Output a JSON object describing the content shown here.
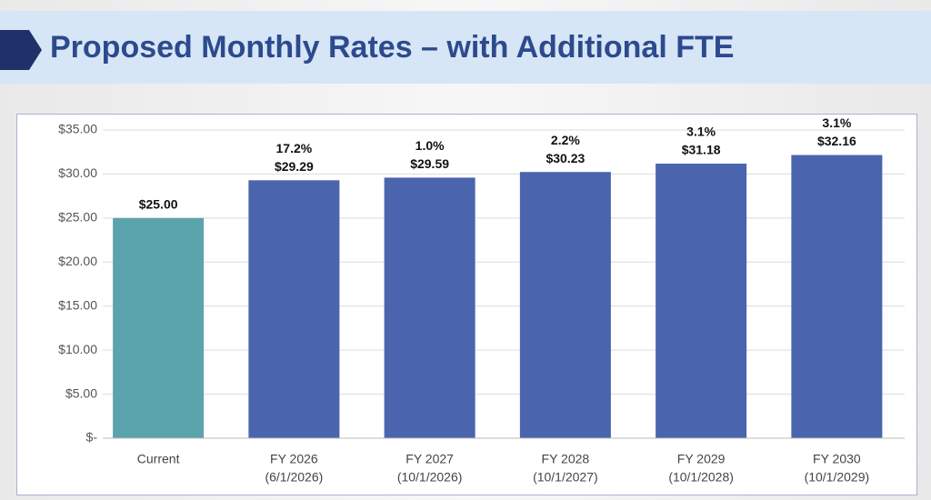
{
  "chart_data": {
    "type": "bar",
    "title": "Proposed Monthly Rates – with Additional FTE",
    "categories": [
      [
        "Current"
      ],
      [
        "FY 2026",
        "(6/1/2026)"
      ],
      [
        "FY 2027",
        "(10/1/2026)"
      ],
      [
        "FY 2028",
        "(10/1/2027)"
      ],
      [
        "FY 2029",
        "(10/1/2028)"
      ],
      [
        "FY 2030",
        "(10/1/2029)"
      ]
    ],
    "values": [
      25.0,
      29.29,
      29.59,
      30.23,
      31.18,
      32.16
    ],
    "value_labels": [
      "$25.00",
      "$29.29",
      "$29.59",
      "$30.23",
      "$31.18",
      "$32.16"
    ],
    "change_labels": [
      null,
      "17.2%",
      "1.0%",
      "2.2%",
      "3.1%",
      "3.1%"
    ],
    "colors": [
      "#5ba3ad",
      "#4a64ae",
      "#4a64ae",
      "#4a64ae",
      "#4a64ae",
      "#4a64ae"
    ],
    "ylim": [
      0,
      35
    ],
    "yticks": [
      {
        "value": 0,
        "label": "$-"
      },
      {
        "value": 5,
        "label": "$5.00"
      },
      {
        "value": 10,
        "label": "$10.00"
      },
      {
        "value": 15,
        "label": "$15.00"
      },
      {
        "value": 20,
        "label": "$20.00"
      },
      {
        "value": 25,
        "label": "$25.00"
      },
      {
        "value": 30,
        "label": "$30.00"
      },
      {
        "value": 35,
        "label": "$35.00"
      }
    ],
    "grid": true
  }
}
